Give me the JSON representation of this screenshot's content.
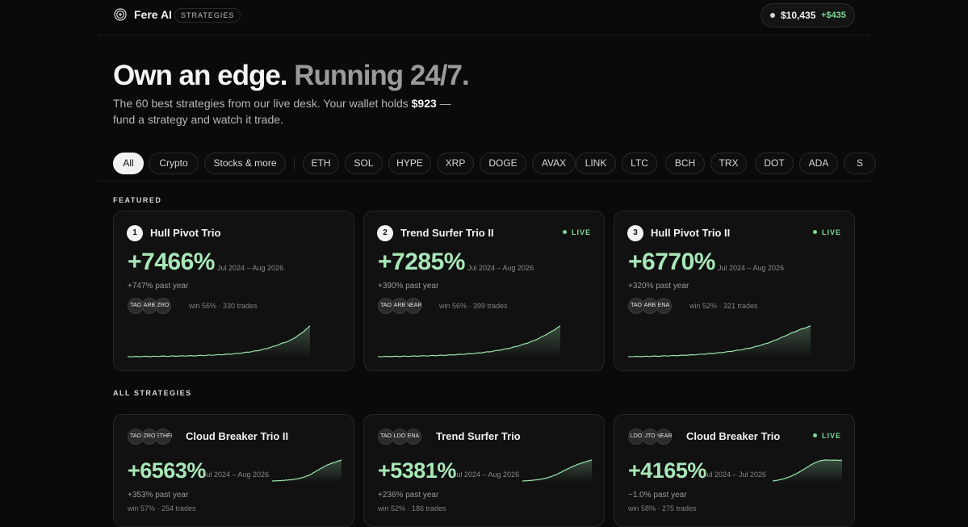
{
  "header": {
    "brand": "Fere AI",
    "section_chip": "STRATEGIES",
    "wallet_balance": "$10,435",
    "wallet_gain": "+$435"
  },
  "hero": {
    "title_a": "Own an edge.",
    "title_b": "Running 24/7.",
    "sub_pre": "The 60 best strategies from our live desk. Your wallet holds ",
    "sub_money": "$923",
    "sub_post": " — fund a strategy and watch it trade."
  },
  "filters": [
    "All",
    "Crypto",
    "Stocks & more",
    "ETH",
    "SOL",
    "HYPE",
    "XRP",
    "DOGE",
    "AVAX",
    "LINK",
    "LTC",
    "BCH",
    "TRX",
    "DOT",
    "ADA",
    "S"
  ],
  "active_filter": "All",
  "featured_label": "FEATURED",
  "all_label": "ALL STRATEGIES",
  "featured": [
    {
      "rank": "1",
      "name": "Hull Pivot Trio",
      "live": "",
      "pct": "+7466%",
      "period": "Jul 2024 – Aug 2026",
      "past_year": "+747% past year",
      "tokens": [
        "TAO",
        "ARB",
        "ZRO"
      ],
      "meta": "win 56% · 330 trades",
      "equity": [
        1,
        1.2,
        1.5,
        1.7,
        2.1,
        2.4,
        2.8,
        3.3,
        4.1,
        5.0,
        6.2,
        7.8,
        10.2,
        13.5,
        18.0,
        24.2,
        32.5,
        41.0,
        56.0,
        75.7
      ]
    },
    {
      "rank": "2",
      "name": "Trend Surfer Trio II",
      "live": "LIVE",
      "pct": "+7285%",
      "period": "Jul 2024 – Aug 2026",
      "past_year": "+390% past year",
      "tokens": [
        "TAO",
        "ARB",
        "NEAR"
      ],
      "meta": "win 56% · 399 trades",
      "equity": [
        1,
        1.3,
        1.6,
        1.9,
        2.3,
        2.9,
        3.5,
        4.4,
        5.5,
        6.9,
        8.6,
        11.0,
        13.9,
        17.8,
        22.6,
        29.0,
        36.8,
        47.0,
        59.5,
        73.9
      ]
    },
    {
      "rank": "3",
      "name": "Hull Pivot Trio II",
      "live": "LIVE",
      "pct": "+6770%",
      "period": "Jul 2024 – Aug 2026",
      "past_year": "+320% past year",
      "tokens": [
        "TAO",
        "ARB",
        "ENA"
      ],
      "meta": "win 52% · 321 trades",
      "equity": [
        1,
        1.3,
        1.7,
        2.1,
        2.7,
        3.4,
        4.2,
        5.3,
        6.8,
        8.5,
        10.8,
        13.6,
        17.1,
        21.6,
        27.3,
        34.5,
        43.5,
        53.2,
        61.5,
        68.7
      ]
    }
  ],
  "strategies": [
    {
      "name": "Cloud Breaker Trio II",
      "live": "",
      "pct": "+6563%",
      "period": "Jul 2024 – Aug 2026",
      "past_year": "+353% past year",
      "tokens": [
        "TAO",
        "ZRO",
        "ETHFI"
      ],
      "meta": "win 57% · 254 trades",
      "equity": [
        1,
        1.4,
        1.9,
        2.6,
        3.5,
        4.6,
        6.1,
        8.0,
        10.6,
        14.0,
        18.4,
        24.1,
        31.5,
        38.0,
        44.2,
        50.5,
        55.0,
        58.8,
        63.0,
        66.6
      ]
    },
    {
      "name": "Trend Surfer Trio",
      "live": "",
      "pct": "+5381%",
      "period": "Jul 2024 – Aug 2026",
      "past_year": "+236% past year",
      "tokens": [
        "TAO",
        "LDO",
        "ENA"
      ],
      "meta": "win 52% · 186 trades",
      "equity": [
        1,
        1.5,
        2.1,
        2.9,
        4.0,
        5.4,
        7.3,
        9.6,
        12.6,
        16.2,
        20.6,
        25.4,
        30.2,
        34.8,
        38.9,
        43.0,
        46.4,
        49.3,
        52.1,
        54.8
      ]
    },
    {
      "name": "Cloud Breaker Trio",
      "live": "LIVE",
      "pct": "+4165%",
      "period": "Jul 2024 – Jul 2026",
      "past_year": "−1.0% past year",
      "tokens": [
        "LDO",
        "JTO",
        "NEAR"
      ],
      "meta": "win 58% · 275 trades",
      "equity": [
        1,
        2.0,
        3.4,
        5.2,
        7.5,
        10.4,
        13.8,
        17.6,
        21.8,
        26.4,
        31.0,
        35.2,
        38.6,
        41.2,
        42.6,
        42.9,
        42.3,
        42.8,
        42.1,
        42.6
      ]
    }
  ],
  "colors": {
    "accent_green": "#a8e6b8",
    "live_green": "#7fd69a",
    "line_green": "#9be2ae"
  }
}
